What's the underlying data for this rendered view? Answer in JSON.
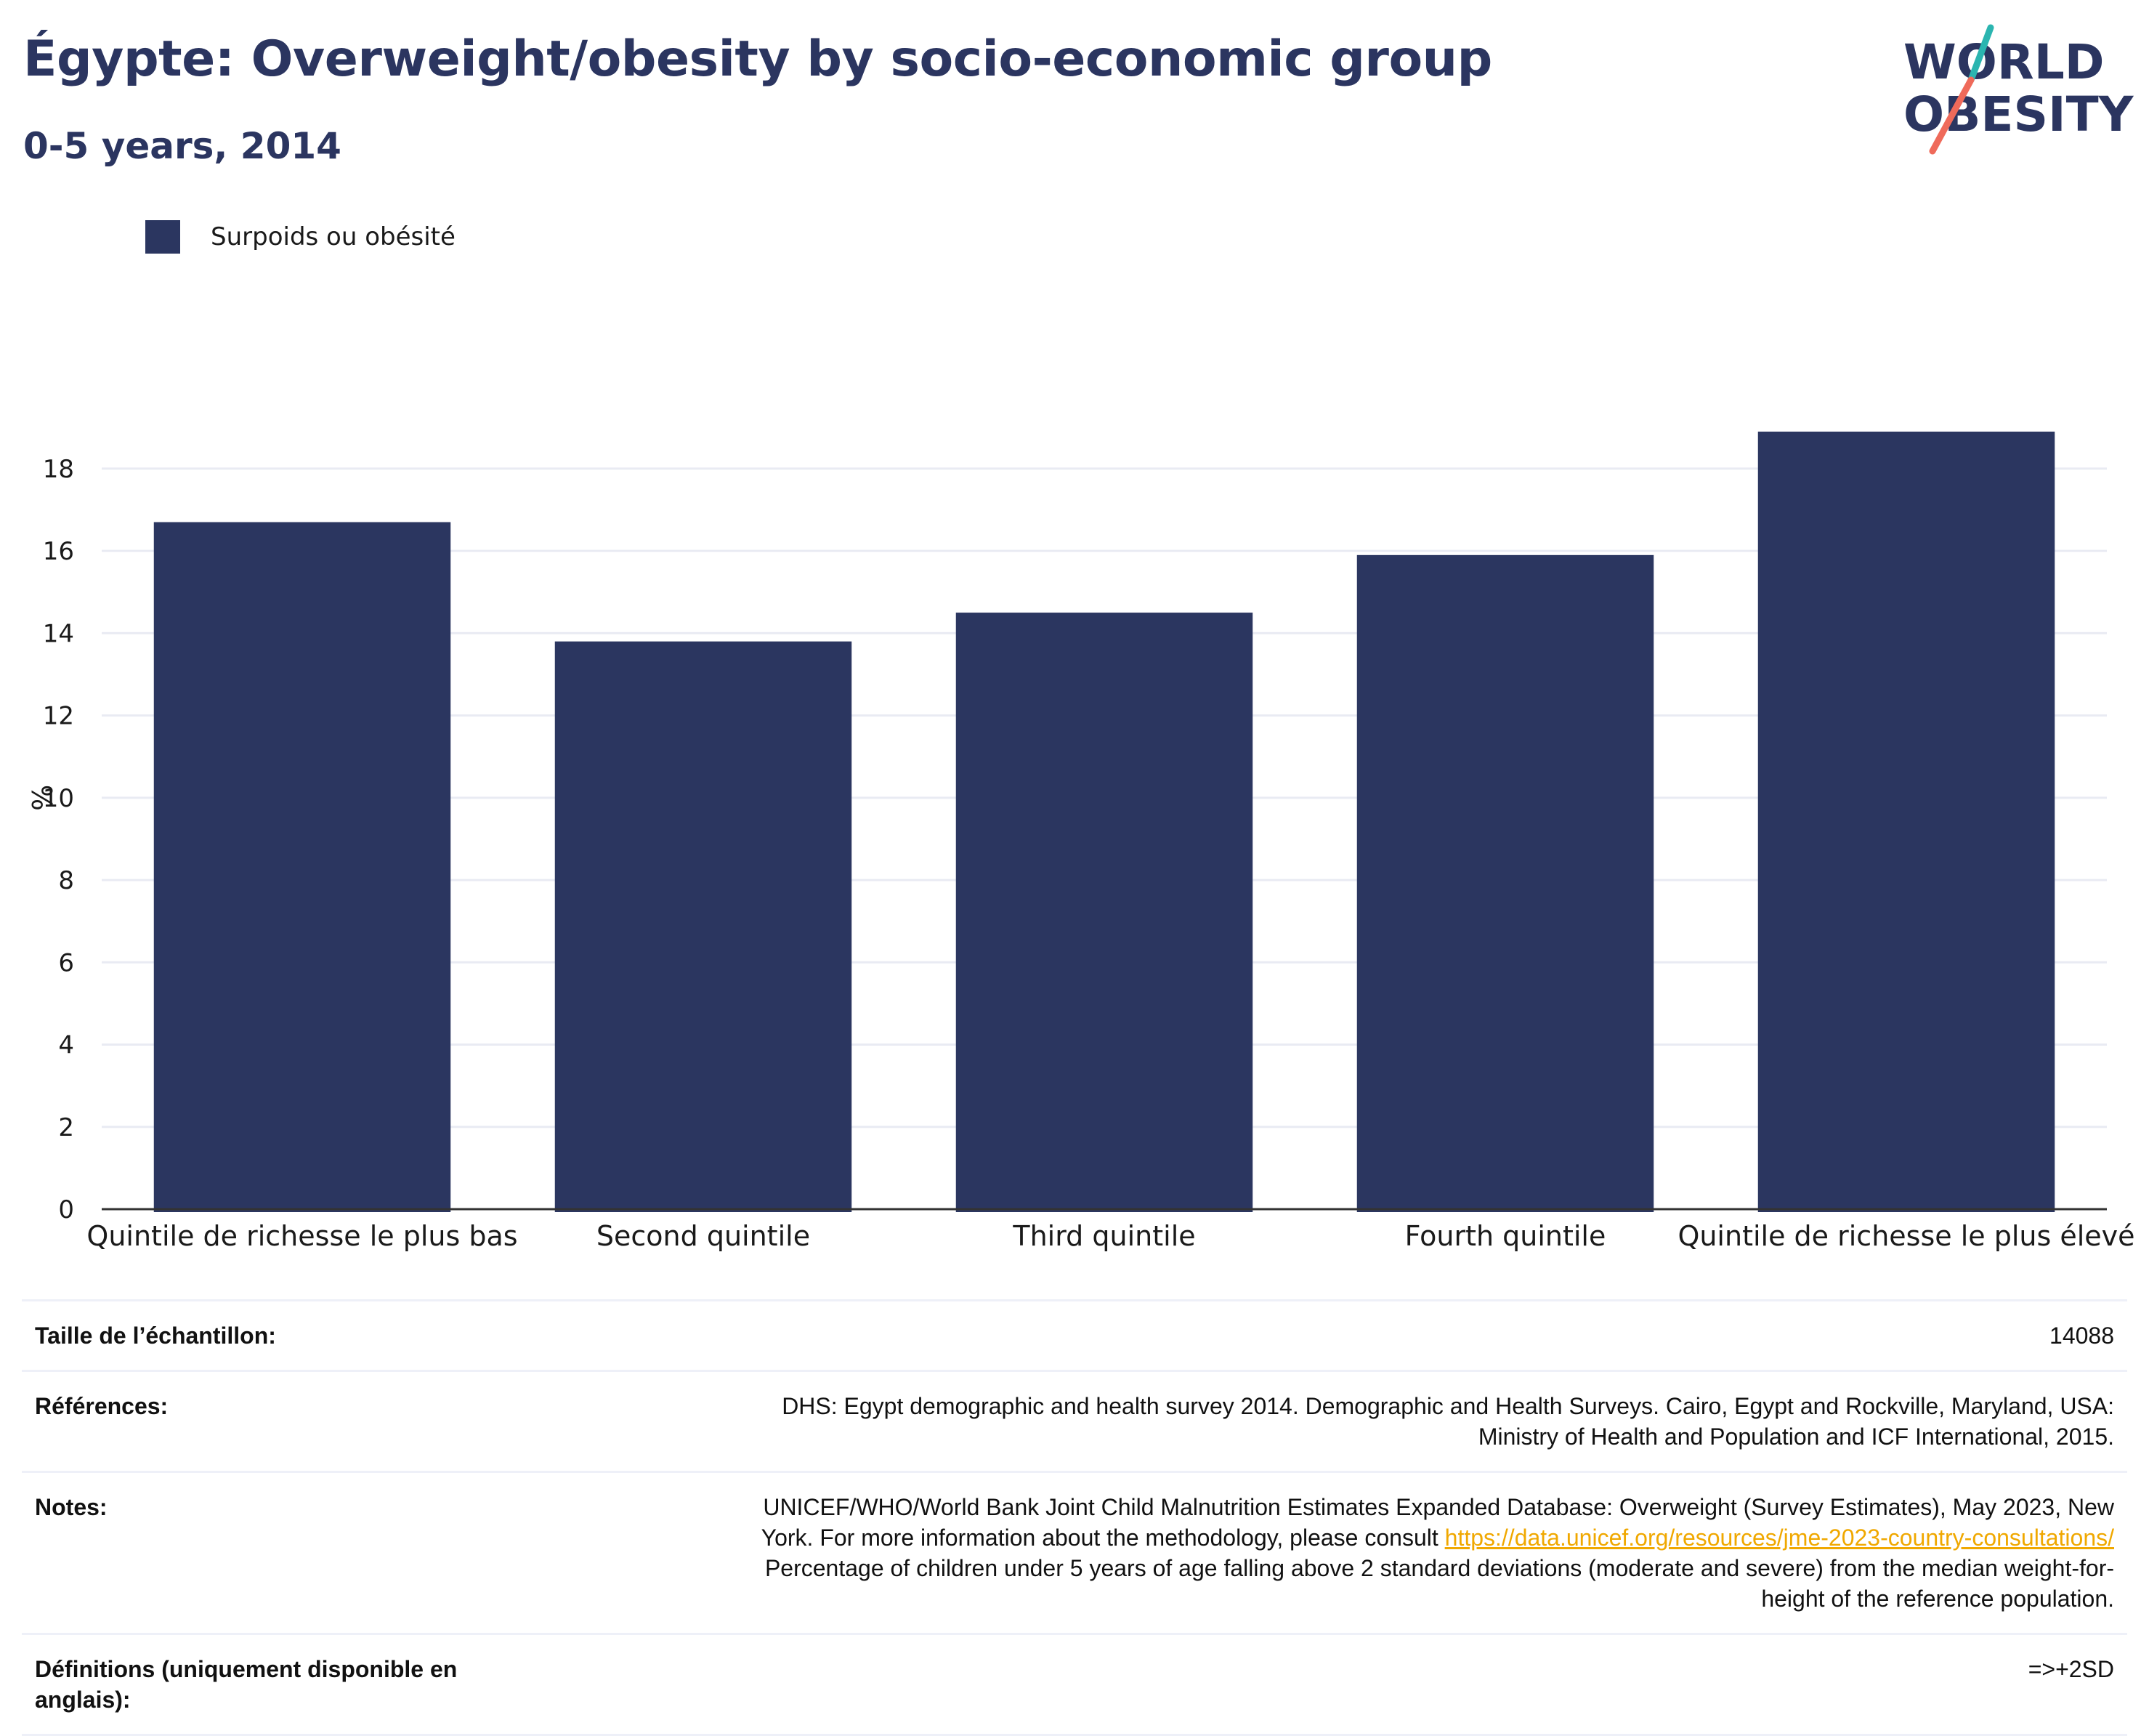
{
  "header": {
    "title": "Égypte: Overweight/obesity by socio-economic group",
    "subtitle": "0-5 years, 2014"
  },
  "logo": {
    "line1": "WORLD",
    "line2": "OBESITY",
    "teal": "#2bb5b0",
    "coral": "#ef6a5a",
    "navy": "#2b3560"
  },
  "legend": {
    "label": "Surpoids ou obésité"
  },
  "colors": {
    "bar": "#2b3660",
    "grid": "#e9ebf3",
    "axis": "#333333",
    "text": "#1a1a1a"
  },
  "chart_data": {
    "type": "bar",
    "categories": [
      "Quintile de richesse le plus bas",
      "Second quintile",
      "Third quintile",
      "Fourth quintile",
      "Quintile de richesse le plus élevé"
    ],
    "series": [
      {
        "name": "Surpoids ou obésité",
        "values": [
          16.7,
          13.8,
          14.5,
          15.9,
          18.9
        ]
      }
    ],
    "ylabel": "%",
    "ylim": [
      0,
      19.5
    ],
    "yticks": [
      0,
      2,
      4,
      6,
      8,
      10,
      12,
      14,
      16,
      18
    ],
    "grid": true,
    "legend_position": "top-left"
  },
  "info": {
    "sample_label": "Taille de l’échantillon:",
    "sample_value": "14088",
    "refs_label": "Références:",
    "refs_line1": "DHS: Egypt demographic and health survey 2014. Demographic and Health Surveys. Cairo, Egypt and Rockville, Maryland, USA:",
    "refs_line2": "Ministry of Health and Population and ICF International, 2015.",
    "notes_label": "Notes:",
    "notes_line1": "UNICEF/WHO/World Bank Joint Child Malnutrition Estimates Expanded Database: Overweight (Survey Estimates), May 2023, New",
    "notes_line2_prefix": "York. For more information about the methodology, please consult ",
    "notes_link": "https://data.unicef.org/resources/jme-2023-country-consultations/",
    "notes_line3": "Percentage of children under 5 years of age falling above 2 standard deviations (moderate and severe) from the median weight-for-",
    "notes_line4": "height of the reference population.",
    "defs_label": "Définitions (uniquement disponible en anglais):",
    "defs_value": "=>+2SD"
  }
}
